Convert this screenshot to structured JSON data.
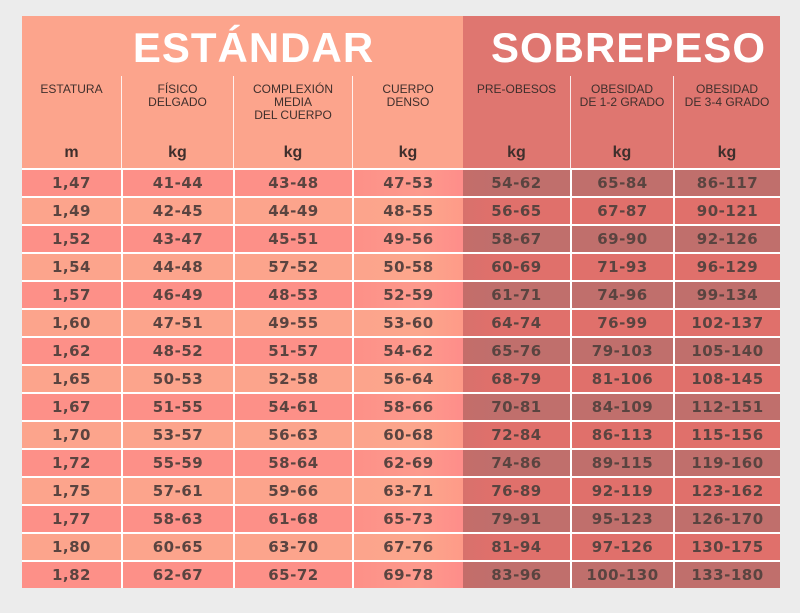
{
  "sections": {
    "standard": {
      "title": "ESTÁNDAR",
      "color": "#fca48c"
    },
    "overweight": {
      "title": "SOBREPESO",
      "color": "#df7670"
    }
  },
  "columns": [
    {
      "label": "ESTATURA",
      "unit": "m"
    },
    {
      "label": "FÍSICO\nDELGADO",
      "unit": "kg"
    },
    {
      "label": "COMPLEXIÓN\nMEDIA\nDEL CUERPO",
      "unit": "kg"
    },
    {
      "label": "CUERPO\nDENSO",
      "unit": "kg"
    },
    {
      "label": "PRE-OBESOS",
      "unit": "kg"
    },
    {
      "label": "OBESIDAD\nDE 1-2 GRADO",
      "unit": "kg"
    },
    {
      "label": "OBESIDAD\nDE 3-4 GRADO",
      "unit": "kg"
    }
  ],
  "rows": [
    [
      "1,47",
      "41-44",
      "43-48",
      "47-53",
      "54-62",
      "65-84",
      "86-117"
    ],
    [
      "1,49",
      "42-45",
      "44-49",
      "48-55",
      "56-65",
      "67-87",
      "90-121"
    ],
    [
      "1,52",
      "43-47",
      "45-51",
      "49-56",
      "58-67",
      "69-90",
      "92-126"
    ],
    [
      "1,54",
      "44-48",
      "57-52",
      "50-58",
      "60-69",
      "71-93",
      "96-129"
    ],
    [
      "1,57",
      "46-49",
      "48-53",
      "52-59",
      "61-71",
      "74-96",
      "99-134"
    ],
    [
      "1,60",
      "47-51",
      "49-55",
      "53-60",
      "64-74",
      "76-99",
      "102-137"
    ],
    [
      "1,62",
      "48-52",
      "51-57",
      "54-62",
      "65-76",
      "79-103",
      "105-140"
    ],
    [
      "1,65",
      "50-53",
      "52-58",
      "56-64",
      "68-79",
      "81-106",
      "108-145"
    ],
    [
      "1,67",
      "51-55",
      "54-61",
      "58-66",
      "70-81",
      "84-109",
      "112-151"
    ],
    [
      "1,70",
      "53-57",
      "56-63",
      "60-68",
      "72-84",
      "86-113",
      "115-156"
    ],
    [
      "1,72",
      "55-59",
      "58-64",
      "62-69",
      "74-86",
      "89-115",
      "119-160"
    ],
    [
      "1,75",
      "57-61",
      "59-66",
      "63-71",
      "76-89",
      "92-119",
      "123-162"
    ],
    [
      "1,77",
      "58-63",
      "61-68",
      "65-73",
      "79-91",
      "95-123",
      "126-170"
    ],
    [
      "1,80",
      "60-65",
      "63-70",
      "67-76",
      "81-94",
      "97-126",
      "130-175"
    ],
    [
      "1,82",
      "62-67",
      "65-72",
      "69-78",
      "83-96",
      "100-130",
      "133-180"
    ]
  ],
  "chart_data": {
    "type": "table",
    "title": "",
    "groups": [
      {
        "name": "ESTÁNDAR",
        "columns": [
          "FÍSICO DELGADO",
          "COMPLEXIÓN MEDIA DEL CUERPO",
          "CUERPO DENSO"
        ]
      },
      {
        "name": "SOBREPESO",
        "columns": [
          "PRE-OBESOS",
          "OBESIDAD DE 1-2 GRADO",
          "OBESIDAD DE 3-4 GRADO"
        ]
      }
    ],
    "headers": [
      "ESTATURA (m)",
      "FÍSICO DELGADO (kg)",
      "COMPLEXIÓN MEDIA DEL CUERPO (kg)",
      "CUERPO DENSO (kg)",
      "PRE-OBESOS (kg)",
      "OBESIDAD DE 1-2 GRADO (kg)",
      "OBESIDAD DE 3-4 GRADO (kg)"
    ],
    "x": [
      1.47,
      1.49,
      1.52,
      1.54,
      1.57,
      1.6,
      1.62,
      1.65,
      1.67,
      1.7,
      1.72,
      1.75,
      1.77,
      1.8,
      1.82
    ],
    "xlabel": "ESTATURA (m)",
    "ylabel": "kg",
    "series": [
      {
        "name": "FÍSICO DELGADO",
        "min": [
          41,
          42,
          43,
          44,
          46,
          47,
          48,
          50,
          51,
          53,
          55,
          57,
          58,
          60,
          62
        ],
        "max": [
          44,
          45,
          47,
          48,
          49,
          51,
          52,
          53,
          55,
          57,
          59,
          61,
          63,
          65,
          67
        ]
      },
      {
        "name": "COMPLEXIÓN MEDIA DEL CUERPO",
        "min": [
          43,
          44,
          45,
          57,
          48,
          49,
          51,
          52,
          54,
          56,
          58,
          59,
          61,
          63,
          65
        ],
        "max": [
          48,
          49,
          51,
          52,
          53,
          55,
          57,
          58,
          61,
          63,
          64,
          66,
          68,
          70,
          72
        ]
      },
      {
        "name": "CUERPO DENSO",
        "min": [
          47,
          48,
          49,
          50,
          52,
          53,
          54,
          56,
          58,
          60,
          62,
          63,
          65,
          67,
          69
        ],
        "max": [
          53,
          55,
          56,
          58,
          59,
          60,
          62,
          64,
          66,
          68,
          69,
          71,
          73,
          76,
          78
        ]
      },
      {
        "name": "PRE-OBESOS",
        "min": [
          54,
          56,
          58,
          60,
          61,
          64,
          65,
          68,
          70,
          72,
          74,
          76,
          79,
          81,
          83
        ],
        "max": [
          62,
          65,
          67,
          69,
          71,
          74,
          76,
          79,
          81,
          84,
          86,
          89,
          91,
          94,
          96
        ]
      },
      {
        "name": "OBESIDAD DE 1-2 GRADO",
        "min": [
          65,
          67,
          69,
          71,
          74,
          76,
          79,
          81,
          84,
          86,
          89,
          92,
          95,
          97,
          100
        ],
        "max": [
          84,
          87,
          90,
          93,
          96,
          99,
          103,
          106,
          109,
          113,
          115,
          119,
          123,
          126,
          130
        ]
      },
      {
        "name": "OBESIDAD DE 3-4 GRADO",
        "min": [
          86,
          90,
          92,
          96,
          99,
          102,
          105,
          108,
          112,
          115,
          119,
          123,
          126,
          130,
          133
        ],
        "max": [
          117,
          121,
          126,
          129,
          134,
          137,
          140,
          145,
          151,
          156,
          160,
          162,
          170,
          175,
          180
        ]
      }
    ]
  }
}
